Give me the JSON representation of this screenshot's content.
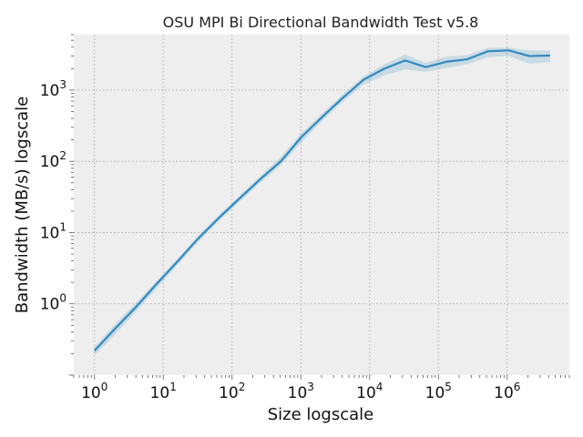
{
  "chart_data": {
    "type": "line",
    "title": "OSU MPI Bi Directional Bandwidth Test v5.8",
    "xlabel": "Size logscale",
    "ylabel": "Bandwidth (MB/s) logscale",
    "x_scale": "log",
    "y_scale": "log",
    "xlim": [
      0.5,
      8000000
    ],
    "ylim": [
      0.1,
      6000
    ],
    "x_ticks": [
      {
        "value": 1,
        "base": "10",
        "exp": "0"
      },
      {
        "value": 10,
        "base": "10",
        "exp": "1"
      },
      {
        "value": 100,
        "base": "10",
        "exp": "2"
      },
      {
        "value": 1000,
        "base": "10",
        "exp": "3"
      },
      {
        "value": 10000,
        "base": "10",
        "exp": "4"
      },
      {
        "value": 100000,
        "base": "10",
        "exp": "5"
      },
      {
        "value": 1000000,
        "base": "10",
        "exp": "6"
      }
    ],
    "y_ticks": [
      {
        "value": 1,
        "base": "10",
        "exp": "0"
      },
      {
        "value": 10,
        "base": "10",
        "exp": "1"
      },
      {
        "value": 100,
        "base": "10",
        "exp": "2"
      },
      {
        "value": 1000,
        "base": "10",
        "exp": "3"
      }
    ],
    "grid": true,
    "line_color": "#348ABD",
    "band_color": "#348ABD",
    "background_color": "#EEEEEE",
    "series": [
      {
        "x": [
          1,
          2,
          4,
          8,
          16,
          32,
          64,
          128,
          256,
          512,
          1024,
          2048,
          4096,
          8192,
          16384,
          32768,
          65536,
          131072,
          262144,
          524288,
          1048576,
          2097152,
          4194304
        ],
        "y": [
          0.22,
          0.45,
          0.9,
          1.9,
          3.9,
          8.2,
          16,
          30,
          56,
          100,
          220,
          420,
          780,
          1400,
          2000,
          2600,
          2100,
          2500,
          2700,
          3500,
          3600,
          3000,
          3050
        ],
        "y_low": [
          0.19,
          0.37,
          0.78,
          1.65,
          3.5,
          7.4,
          14.5,
          27,
          50,
          88,
          185,
          370,
          690,
          1200,
          1600,
          1950,
          1800,
          2050,
          2300,
          2900,
          3000,
          2350,
          2450
        ],
        "y_high": [
          0.25,
          0.52,
          1.03,
          2.1,
          4.3,
          9.0,
          17.5,
          33,
          62,
          115,
          250,
          470,
          880,
          1550,
          2300,
          3150,
          2400,
          2950,
          3100,
          3900,
          3950,
          3600,
          3600
        ]
      }
    ]
  }
}
